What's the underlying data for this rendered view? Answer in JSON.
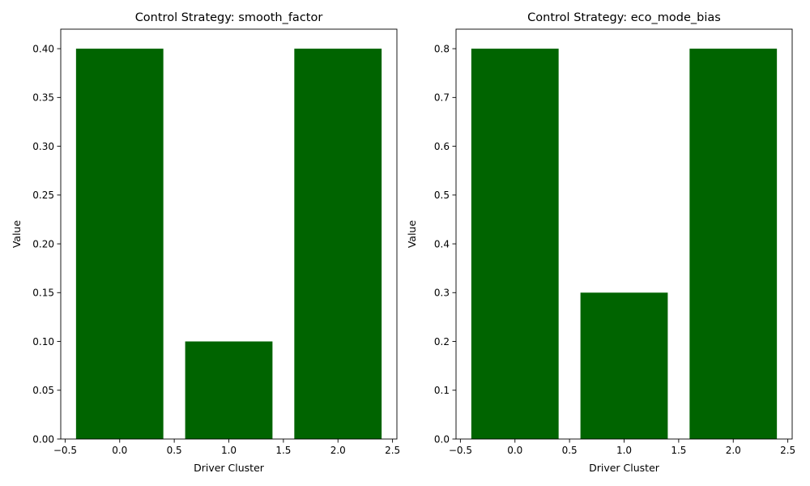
{
  "chart_data": [
    {
      "type": "bar",
      "title": "Control Strategy: smooth_factor",
      "xlabel": "Driver Cluster",
      "ylabel": "Value",
      "x": [
        0,
        1,
        2
      ],
      "values": [
        0.4,
        0.1,
        0.4
      ],
      "bar_width": 0.8,
      "xlim": [
        -0.54,
        2.54
      ],
      "ylim": [
        0,
        0.42
      ],
      "xticks": [
        -0.5,
        0.0,
        0.5,
        1.0,
        1.5,
        2.0,
        2.5
      ],
      "xtick_labels": [
        "−0.5",
        "0.0",
        "0.5",
        "1.0",
        "1.5",
        "2.0",
        "2.5"
      ],
      "yticks": [
        0.0,
        0.05,
        0.1,
        0.15,
        0.2,
        0.25,
        0.3,
        0.35,
        0.4
      ],
      "ytick_labels": [
        "0.00",
        "0.05",
        "0.10",
        "0.15",
        "0.20",
        "0.25",
        "0.30",
        "0.35",
        "0.40"
      ],
      "color": "#006400",
      "grid": false
    },
    {
      "type": "bar",
      "title": "Control Strategy: eco_mode_bias",
      "xlabel": "Driver Cluster",
      "ylabel": "Value",
      "x": [
        0,
        1,
        2
      ],
      "values": [
        0.8,
        0.3,
        0.8
      ],
      "bar_width": 0.8,
      "xlim": [
        -0.54,
        2.54
      ],
      "ylim": [
        0,
        0.84
      ],
      "xticks": [
        -0.5,
        0.0,
        0.5,
        1.0,
        1.5,
        2.0,
        2.5
      ],
      "xtick_labels": [
        "−0.5",
        "0.0",
        "0.5",
        "1.0",
        "1.5",
        "2.0",
        "2.5"
      ],
      "yticks": [
        0.0,
        0.1,
        0.2,
        0.3,
        0.4,
        0.5,
        0.6,
        0.7,
        0.8
      ],
      "ytick_labels": [
        "0.0",
        "0.1",
        "0.2",
        "0.3",
        "0.4",
        "0.5",
        "0.6",
        "0.7",
        "0.8"
      ],
      "color": "#006400",
      "grid": false
    }
  ]
}
